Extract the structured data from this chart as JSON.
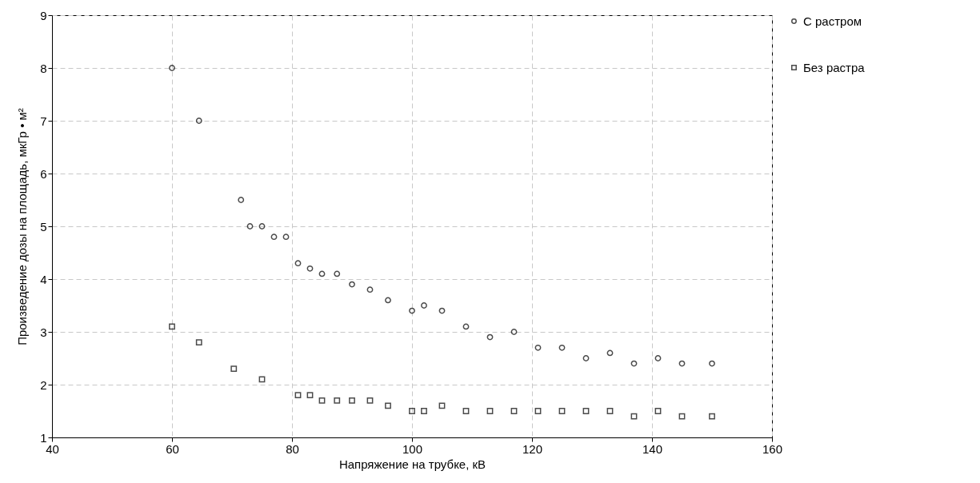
{
  "chart_data": {
    "type": "scatter",
    "xlabel": "Напряжение на трубке, кВ",
    "ylabel": "Произведение дозы на площадь, мкГр • м²",
    "series": [
      {
        "name": "С растром",
        "color": "#000000",
        "marker": "circle",
        "x": [
          60,
          64.5,
          71.5,
          73,
          75,
          77,
          79,
          81,
          83,
          85,
          87.5,
          90,
          93,
          96,
          100,
          102,
          105,
          109,
          113,
          117,
          121,
          125,
          129,
          133,
          137,
          141,
          145,
          150
        ],
        "values": [
          8,
          7,
          5.5,
          5,
          5,
          4.8,
          4.8,
          4.3,
          4.2,
          4.1,
          4.1,
          3.9,
          3.8,
          3.6,
          3.4,
          3.5,
          3.4,
          3.1,
          2.9,
          3.0,
          2.7,
          2.7,
          2.5,
          2.6,
          2.4,
          2.5,
          2.4,
          2.4
        ]
      },
      {
        "name": "Без растра",
        "color": "#000000",
        "marker": "square",
        "x": [
          60,
          64.5,
          70.3,
          75,
          81,
          83,
          85,
          87.5,
          90,
          93,
          96,
          100,
          102,
          105,
          109,
          113,
          117,
          121,
          125,
          129,
          133,
          137,
          141,
          145,
          150
        ],
        "values": [
          3.1,
          2.8,
          2.3,
          2.1,
          1.8,
          1.8,
          1.7,
          1.7,
          1.7,
          1.7,
          1.6,
          1.5,
          1.5,
          1.6,
          1.5,
          1.5,
          1.5,
          1.5,
          1.5,
          1.5,
          1.5,
          1.4,
          1.5,
          1.4,
          1.4
        ]
      }
    ],
    "xlim": [
      40,
      160
    ],
    "xticks": [
      40,
      60,
      80,
      100,
      120,
      140,
      160
    ],
    "ylim": [
      1,
      9
    ],
    "yticks": [
      1,
      2,
      3,
      4,
      5,
      6,
      7,
      8,
      9
    ],
    "grid": true,
    "legend": "right"
  }
}
